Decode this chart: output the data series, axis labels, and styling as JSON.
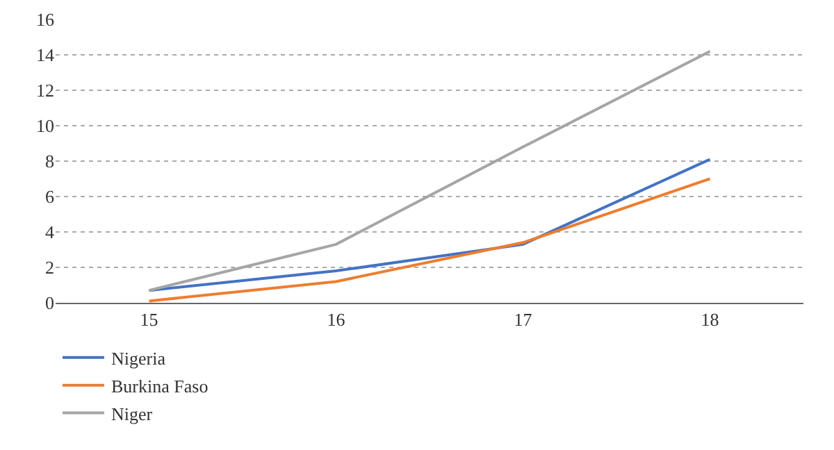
{
  "chart_data": {
    "type": "line",
    "categories": [
      "15",
      "16",
      "17",
      "18"
    ],
    "series": [
      {
        "name": "Nigeria",
        "color": "#4472c4",
        "values": [
          0.7,
          1.8,
          3.3,
          8.1
        ]
      },
      {
        "name": "Burkina Faso",
        "color": "#ed7d31",
        "values": [
          0.1,
          1.2,
          3.4,
          7.0
        ]
      },
      {
        "name": "Niger",
        "color": "#a5a5a5",
        "values": [
          0.7,
          3.3,
          8.8,
          14.2
        ]
      }
    ],
    "ylim": [
      0,
      16
    ],
    "yticks": [
      0,
      2,
      4,
      6,
      8,
      10,
      12,
      14,
      16
    ],
    "grid": "y",
    "legend": "bottom left",
    "marker": "none",
    "line_style": "solid"
  }
}
